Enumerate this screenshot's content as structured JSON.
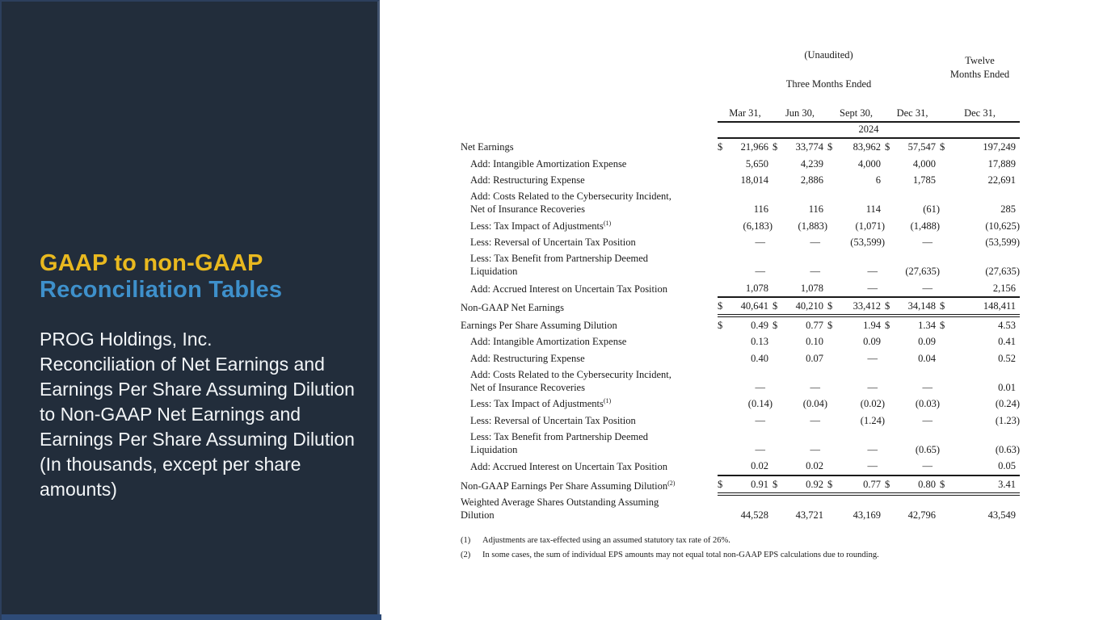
{
  "sidebar": {
    "title_line1": "GAAP to non-GAAP",
    "title_line2": "Reconciliation Tables",
    "subtitle": "PROG Holdings, Inc.\nReconciliation of Net Earnings and\nEarnings Per Share Assuming Dilution\nto Non-GAAP Net Earnings and\nEarnings Per Share Assuming Dilution\n(In thousands, except per share\namounts)",
    "colors": {
      "panel_bg": "#222D3B",
      "panel_bottom_bar": "#2E4B77",
      "title_yellow": "#E9B91F",
      "title_blue": "#3E90CB",
      "body_text": "#F3F6F8"
    }
  },
  "table": {
    "unaudited_label": "(Unaudited)",
    "three_months_label": "Three Months Ended",
    "twelve_months_label": "Twelve\nMonths Ended",
    "period_headers": [
      "Mar 31,",
      "Jun 30,",
      "Sept 30,",
      "Dec 31,",
      "Dec 31,"
    ],
    "year_label": "2024",
    "currency_symbol": "$",
    "nil_symbol": "—",
    "rows": [
      {
        "label": "Net Earnings",
        "indent": false,
        "dollar": true,
        "values": [
          "21,966",
          "33,774",
          "83,962",
          "57,547",
          "197,249"
        ]
      },
      {
        "label": "Add: Intangible Amortization Expense",
        "indent": true,
        "values": [
          "5,650",
          "4,239",
          "4,000",
          "4,000",
          "17,889"
        ]
      },
      {
        "label": "Add: Restructuring Expense",
        "indent": true,
        "values": [
          "18,014",
          "2,886",
          "6",
          "1,785",
          "22,691"
        ]
      },
      {
        "label": "Add: Costs Related to the Cybersecurity Incident,\nNet of Insurance Recoveries",
        "indent": true,
        "values": [
          "116",
          "116",
          "114",
          "(61)",
          "285"
        ]
      },
      {
        "label": "Less: Tax Impact of Adjustments",
        "sup": "(1)",
        "indent": true,
        "values": [
          "(6,183)",
          "(1,883)",
          "(1,071)",
          "(1,488)",
          "(10,625)"
        ]
      },
      {
        "label": "Less: Reversal of Uncertain Tax Position",
        "indent": true,
        "values": [
          "—",
          "—",
          "(53,599)",
          "—",
          "(53,599)"
        ]
      },
      {
        "label": "Less: Tax Benefit from Partnership Deemed\nLiquidation",
        "indent": true,
        "values": [
          "—",
          "—",
          "—",
          "(27,635)",
          "(27,635)"
        ]
      },
      {
        "label": "Add: Accrued Interest on Uncertain Tax Position",
        "indent": true,
        "values": [
          "1,078",
          "1,078",
          "—",
          "—",
          "2,156"
        ],
        "rule_below": "single"
      },
      {
        "label": "Non-GAAP Net Earnings",
        "indent": false,
        "dollar": true,
        "values": [
          "40,641",
          "40,210",
          "33,412",
          "34,148",
          "148,411"
        ],
        "rule_below": "double"
      },
      {
        "label": "Earnings Per Share Assuming Dilution",
        "indent": false,
        "dollar": true,
        "values": [
          "0.49",
          "0.77",
          "1.94",
          "1.34",
          "4.53"
        ]
      },
      {
        "label": "Add: Intangible Amortization Expense",
        "indent": true,
        "values": [
          "0.13",
          "0.10",
          "0.09",
          "0.09",
          "0.41"
        ]
      },
      {
        "label": "Add: Restructuring Expense",
        "indent": true,
        "values": [
          "0.40",
          "0.07",
          "—",
          "0.04",
          "0.52"
        ]
      },
      {
        "label": "Add: Costs Related to the Cybersecurity Incident,\nNet of Insurance Recoveries",
        "indent": true,
        "values": [
          "—",
          "—",
          "—",
          "—",
          "0.01"
        ]
      },
      {
        "label": "Less: Tax Impact of Adjustments",
        "sup": "(1)",
        "indent": true,
        "values": [
          "(0.14)",
          "(0.04)",
          "(0.02)",
          "(0.03)",
          "(0.24)"
        ]
      },
      {
        "label": "Less: Reversal of Uncertain Tax Position",
        "indent": true,
        "values": [
          "—",
          "—",
          "(1.24)",
          "—",
          "(1.23)"
        ]
      },
      {
        "label": "Less: Tax Benefit from Partnership Deemed\nLiquidation",
        "indent": true,
        "values": [
          "—",
          "—",
          "—",
          "(0.65)",
          "(0.63)"
        ]
      },
      {
        "label": "Add: Accrued Interest on Uncertain Tax Position",
        "indent": true,
        "values": [
          "0.02",
          "0.02",
          "—",
          "—",
          "0.05"
        ],
        "rule_below": "single"
      },
      {
        "label": "Non-GAAP Earnings Per Share Assuming Dilution",
        "sup": "(2)",
        "indent": false,
        "dollar": true,
        "values": [
          "0.91",
          "0.92",
          "0.77",
          "0.80",
          "3.41"
        ],
        "rule_below": "double"
      },
      {
        "label": "Weighted Average Shares Outstanding Assuming\nDilution",
        "indent": false,
        "values": [
          "44,528",
          "43,721",
          "43,169",
          "42,796",
          "43,549"
        ]
      }
    ]
  },
  "footnotes": [
    {
      "ref": "(1)",
      "text": "Adjustments are tax-effected using an assumed statutory tax rate of 26%."
    },
    {
      "ref": "(2)",
      "text": "In some cases, the sum of individual EPS amounts may not equal total non-GAAP EPS calculations due to rounding."
    }
  ]
}
